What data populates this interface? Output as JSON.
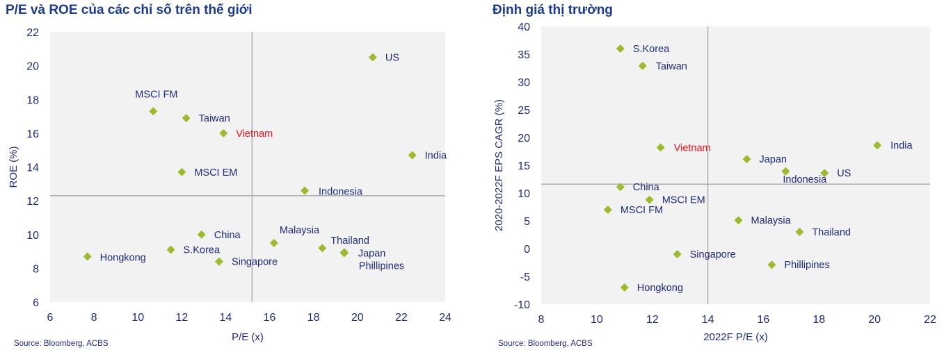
{
  "chart_data": [
    {
      "type": "scatter",
      "title": "P/E và ROE của các chỉ số trên thế giới",
      "xlabel": "P/E (x)",
      "ylabel": "ROE (%)",
      "xlim": [
        6,
        24
      ],
      "ylim": [
        6,
        22
      ],
      "xticks": [
        "6",
        "8",
        "10",
        "12",
        "14",
        "16",
        "18",
        "20",
        "22",
        "24"
      ],
      "yticks": [
        "6",
        "8",
        "10",
        "12",
        "14",
        "16",
        "18",
        "20",
        "22"
      ],
      "grid": false,
      "reference_lines": {
        "x": 15.2,
        "y": 12.3
      },
      "source": "Source: Bloomberg, ACBS",
      "highlight": "Vietnam",
      "points": [
        {
          "label": "US",
          "x": 20.7,
          "y": 20.5
        },
        {
          "label": "MSCI FM",
          "x": 10.7,
          "y": 17.3
        },
        {
          "label": "Taiwan",
          "x": 12.2,
          "y": 16.9
        },
        {
          "label": "Vietnam",
          "x": 13.9,
          "y": 16.0
        },
        {
          "label": "India",
          "x": 22.5,
          "y": 14.7
        },
        {
          "label": "MSCI EM",
          "x": 12.0,
          "y": 13.7
        },
        {
          "label": "Indonesia",
          "x": 17.6,
          "y": 12.6
        },
        {
          "label": "China",
          "x": 12.9,
          "y": 10.0
        },
        {
          "label": "Malaysia",
          "x": 16.2,
          "y": 9.5
        },
        {
          "label": "Thailand",
          "x": 18.4,
          "y": 9.2
        },
        {
          "label": "Japan",
          "x": 19.4,
          "y": 8.95
        },
        {
          "label": "Phillipines",
          "x": 19.4,
          "y": 8.9
        },
        {
          "label": "S.Korea",
          "x": 11.5,
          "y": 9.1
        },
        {
          "label": "Hongkong",
          "x": 7.7,
          "y": 8.7
        },
        {
          "label": "Singapore",
          "x": 13.7,
          "y": 8.4
        }
      ]
    },
    {
      "type": "scatter",
      "title": "Định giá thị trường",
      "xlabel": "2022F P/E (x)",
      "ylabel": "2020-2022F EPS CAGR (%)",
      "xlim": [
        8,
        22
      ],
      "ylim": [
        -10,
        40
      ],
      "xticks": [
        "8",
        "10",
        "12",
        "14",
        "16",
        "18",
        "20",
        "22"
      ],
      "yticks": [
        "-10",
        "-5",
        "0",
        "5",
        "10",
        "15",
        "20",
        "25",
        "30",
        "35",
        "40"
      ],
      "grid": false,
      "reference_lines": {
        "x": 14.0,
        "y": 11.6
      },
      "source": "Source: Bloomberg, ACBS",
      "highlight": "Vietnam",
      "points": [
        {
          "label": "S.Korea",
          "x": 10.85,
          "y": 36.0
        },
        {
          "label": "Taiwan",
          "x": 11.65,
          "y": 32.9
        },
        {
          "label": "Vietnam",
          "x": 12.3,
          "y": 18.2
        },
        {
          "label": "India",
          "x": 20.1,
          "y": 18.6
        },
        {
          "label": "Japan",
          "x": 15.4,
          "y": 16.1
        },
        {
          "label": "Indonesia",
          "x": 16.8,
          "y": 13.9
        },
        {
          "label": "US",
          "x": 18.2,
          "y": 13.6
        },
        {
          "label": "China",
          "x": 10.85,
          "y": 11.1
        },
        {
          "label": "MSCI EM",
          "x": 11.9,
          "y": 8.8
        },
        {
          "label": "MSCI FM",
          "x": 10.4,
          "y": 7.0
        },
        {
          "label": "Malaysia",
          "x": 15.1,
          "y": 5.1
        },
        {
          "label": "Thailand",
          "x": 17.3,
          "y": 3.0
        },
        {
          "label": "Singapore",
          "x": 12.9,
          "y": -1.0
        },
        {
          "label": "Phillipines",
          "x": 16.3,
          "y": -2.9
        },
        {
          "label": "Hongkong",
          "x": 11.0,
          "y": -7.0
        }
      ]
    }
  ],
  "colors": {
    "marker": "#9bbb2c",
    "highlight_label": "#e8101a",
    "text": "#1f2a78",
    "title": "#1b3a8c",
    "plot_bg": "#f2f2f2",
    "ref_line": "#a6a6a6"
  }
}
